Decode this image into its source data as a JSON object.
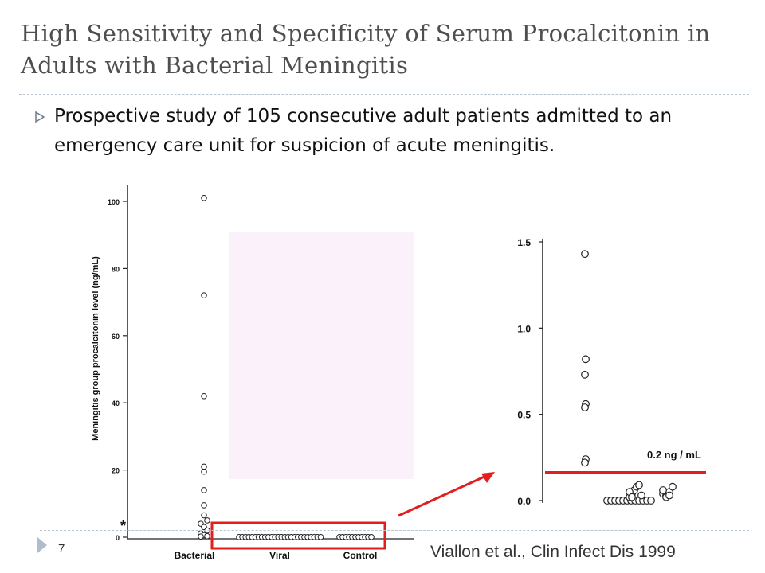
{
  "slide": {
    "title": "High Sensitivity and Specificity of Serum Procalcitonin in Adults with Bacterial Meningitis",
    "bullet": "Prospective study of 105 consecutive adult patients admitted to an emergency care unit for suspicion of acute meningitis.",
    "page_number": "7",
    "citation": "Viallon et al., Clin Infect Dis 1999"
  },
  "colors": {
    "title": "#4f4f4f",
    "highlight": "#e41e1e",
    "overlay": "#fbf1fb",
    "rule": "#b8c4cf"
  },
  "chart_data": [
    {
      "type": "scatter",
      "title": "",
      "xlabel": "",
      "ylabel": "Meningitis group procalcitonin level (ng/mL)",
      "ylim": [
        0,
        100
      ],
      "yticks": [
        0,
        20,
        40,
        60,
        80,
        100
      ],
      "categories": [
        "Bacterial",
        "Viral",
        "Control"
      ],
      "annotation": "*",
      "series": [
        {
          "category": "Bacterial",
          "values": [
            101,
            72,
            42,
            21,
            19.5,
            14,
            9.5,
            6.5,
            5,
            4,
            3,
            2,
            1.2,
            0.6,
            0.3,
            0.2
          ]
        },
        {
          "category": "Viral",
          "values": [
            0.05,
            0.05,
            0.05,
            0.05,
            0.05,
            0.05,
            0.05,
            0.05,
            0.05,
            0.05,
            0.05,
            0.05,
            0.05,
            0.05,
            0.05,
            0.05,
            0.05,
            0.05,
            0.05,
            0.05,
            0.05,
            0.05,
            0.05,
            0.05,
            0.05,
            0.05
          ]
        },
        {
          "category": "Control",
          "values": [
            0.05,
            0.05,
            0.05,
            0.05,
            0.05,
            0.05,
            0.05,
            0.05,
            0.05,
            0.05,
            0.05
          ]
        }
      ]
    },
    {
      "type": "scatter",
      "title": "",
      "ylim": [
        0,
        1.5
      ],
      "yticks": [
        "0.0",
        "0.5",
        "1.0",
        "1.5"
      ],
      "threshold": {
        "value": 0.17,
        "label": "0.2 ng / mL"
      },
      "points": [
        {
          "x": 0,
          "y": 1.43
        },
        {
          "x": 0,
          "y": 0.82
        },
        {
          "x": 0,
          "y": 0.73
        },
        {
          "x": 0,
          "y": 0.56
        },
        {
          "x": 0,
          "y": 0.54
        },
        {
          "x": 0,
          "y": 0.24
        },
        {
          "x": 0,
          "y": 0.22
        },
        {
          "x": 1,
          "y": 0.0
        },
        {
          "x": 1,
          "y": 0.0
        },
        {
          "x": 1,
          "y": 0.0
        },
        {
          "x": 1,
          "y": 0.0
        },
        {
          "x": 1,
          "y": 0.0
        },
        {
          "x": 1,
          "y": 0.0
        },
        {
          "x": 1,
          "y": 0.0
        },
        {
          "x": 1,
          "y": 0.0
        },
        {
          "x": 1,
          "y": 0.0
        },
        {
          "x": 1,
          "y": 0.0
        },
        {
          "x": 1,
          "y": 0.0
        },
        {
          "x": 1,
          "y": 0.0
        },
        {
          "x": 1,
          "y": 0.02
        },
        {
          "x": 1,
          "y": 0.04
        },
        {
          "x": 1,
          "y": 0.06
        },
        {
          "x": 1,
          "y": 0.08
        },
        {
          "x": 1,
          "y": 0.09
        },
        {
          "x": 1,
          "y": 0.03
        },
        {
          "x": 1,
          "y": 0.05
        },
        {
          "x": 1,
          "y": 0.02
        },
        {
          "x": 2,
          "y": 0.04
        },
        {
          "x": 2,
          "y": 0.03
        },
        {
          "x": 2,
          "y": 0.05
        },
        {
          "x": 2,
          "y": 0.08
        },
        {
          "x": 2,
          "y": 0.06
        },
        {
          "x": 2,
          "y": 0.02
        },
        {
          "x": 2,
          "y": 0.03
        }
      ]
    }
  ]
}
